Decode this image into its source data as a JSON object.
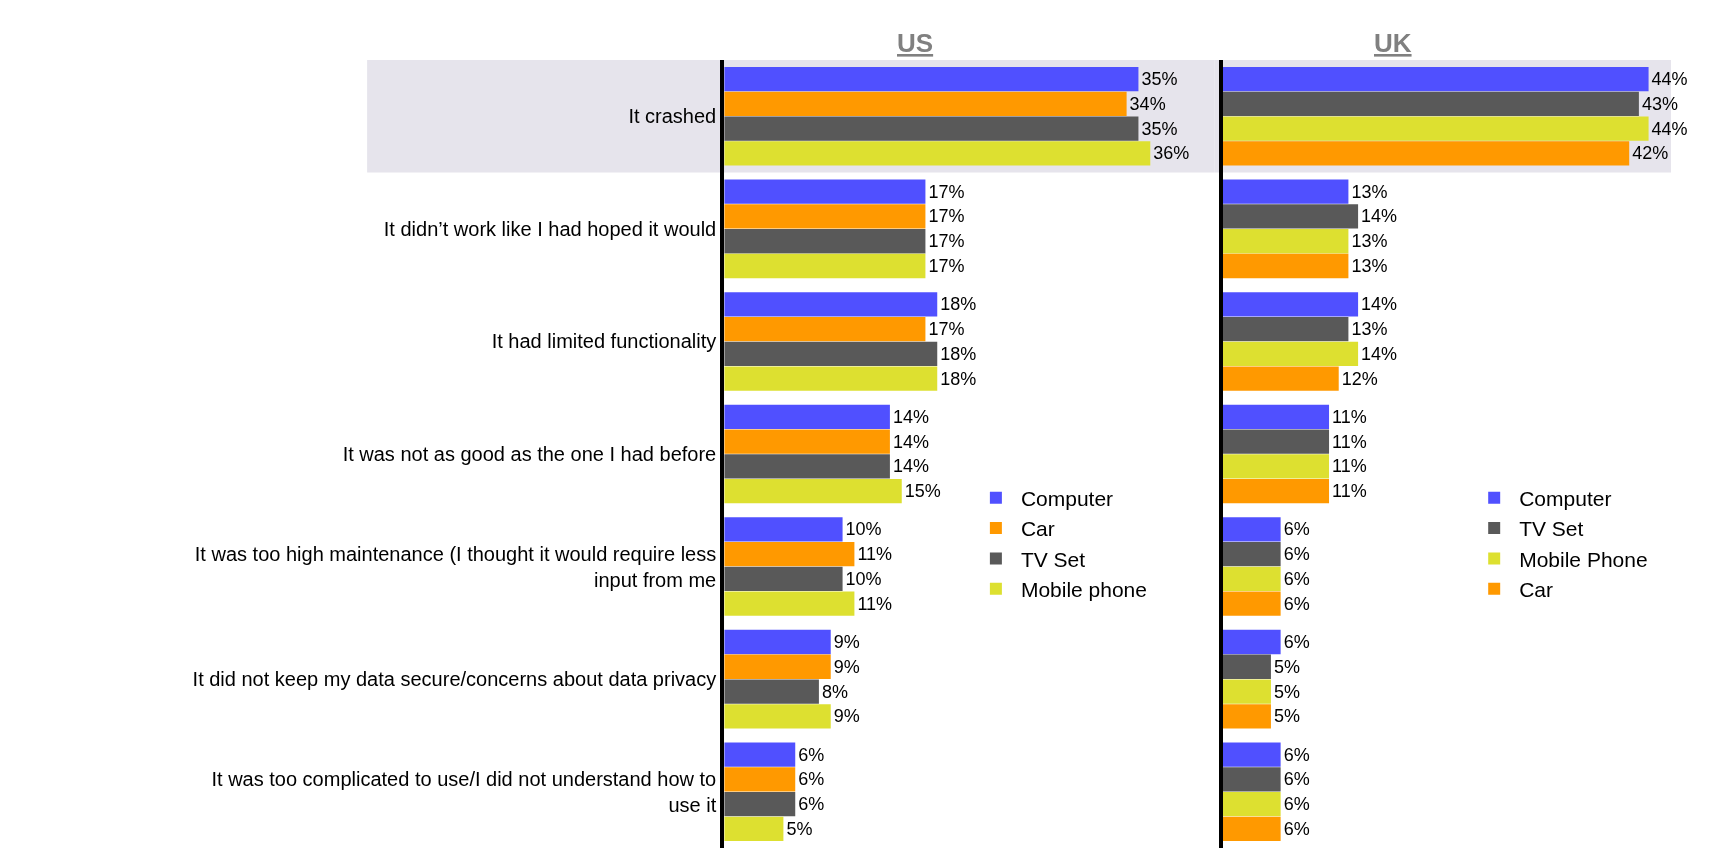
{
  "chart_data": [
    {
      "type": "bar",
      "title": "US",
      "orientation": "horizontal",
      "tick_labels": "y",
      "legend": "right",
      "categories": [
        "It crashed",
        "It didn’t work like I had hoped it would",
        "It had limited functionality",
        "It was not as good as the one I had before",
        "It was too high maintenance (I thought it would require less input from me",
        "It did not keep my data secure/concerns about data privacy",
        "It was too complicated to use/I did not understand how to use it"
      ],
      "bands": [
        {
          "axis": "y",
          "from": "It crashed",
          "to": "It crashed",
          "color": "#e6e4ec"
        }
      ],
      "series": [
        {
          "name": "Computer",
          "color": "#5050ff",
          "values": [
            35,
            17,
            18,
            14,
            10,
            9,
            6
          ],
          "value_labels": [
            "35%",
            "17%",
            "18%",
            "14%",
            "10%",
            "9%",
            "6%"
          ]
        },
        {
          "name": "Car",
          "color": "#ff9900",
          "values": [
            34,
            17,
            17,
            14,
            11,
            9,
            6
          ],
          "value_labels": [
            "34%",
            "17%",
            "17%",
            "14%",
            "11%",
            "9%",
            "6%"
          ]
        },
        {
          "name": "TV Set",
          "color": "#595959",
          "values": [
            35,
            17,
            18,
            14,
            10,
            8,
            6
          ],
          "value_labels": [
            "35%",
            "17%",
            "18%",
            "14%",
            "10%",
            "8%",
            "6%"
          ]
        },
        {
          "name": "Mobile phone",
          "color": "#dde030",
          "values": [
            36,
            17,
            18,
            15,
            11,
            9,
            5
          ],
          "value_labels": [
            "36%",
            "17%",
            "18%",
            "15%",
            "11%",
            "9%",
            "5%"
          ]
        }
      ]
    },
    {
      "type": "bar",
      "title": "UK",
      "orientation": "horizontal",
      "tick_labels": false,
      "legend": "right",
      "categories": [
        "It crashed",
        "It didn’t work like I had hoped it would",
        "It had limited functionality",
        "It was not as good as the one I had before",
        "It was too high maintenance (I thought it would require less input from me",
        "It did not keep my data secure/concerns about data privacy",
        "It was too complicated to use/I did not understand how to use it"
      ],
      "bands": [
        {
          "axis": "y",
          "from": "It crashed",
          "to": "It crashed",
          "color": "#e6e4ec"
        }
      ],
      "series": [
        {
          "name": "Computer",
          "color": "#5050ff",
          "values": [
            44,
            13,
            14,
            11,
            6,
            6,
            6
          ],
          "value_labels": [
            "44%",
            "13%",
            "14%",
            "11%",
            "6%",
            "6%",
            "6%"
          ]
        },
        {
          "name": "TV Set",
          "color": "#595959",
          "values": [
            43,
            14,
            13,
            11,
            6,
            5,
            6
          ],
          "value_labels": [
            "43%",
            "14%",
            "13%",
            "11%",
            "6%",
            "5%",
            "6%"
          ]
        },
        {
          "name": "Mobile Phone",
          "color": "#dde030",
          "values": [
            44,
            13,
            14,
            11,
            6,
            5,
            6
          ],
          "value_labels": [
            "44%",
            "13%",
            "14%",
            "11%",
            "6%",
            "5%",
            "6%"
          ]
        },
        {
          "name": "Car",
          "color": "#ff9900",
          "values": [
            42,
            13,
            12,
            11,
            6,
            5,
            6
          ],
          "value_labels": [
            "42%",
            "13%",
            "12%",
            "11%",
            "6%",
            "5%",
            "6%"
          ]
        }
      ]
    }
  ]
}
